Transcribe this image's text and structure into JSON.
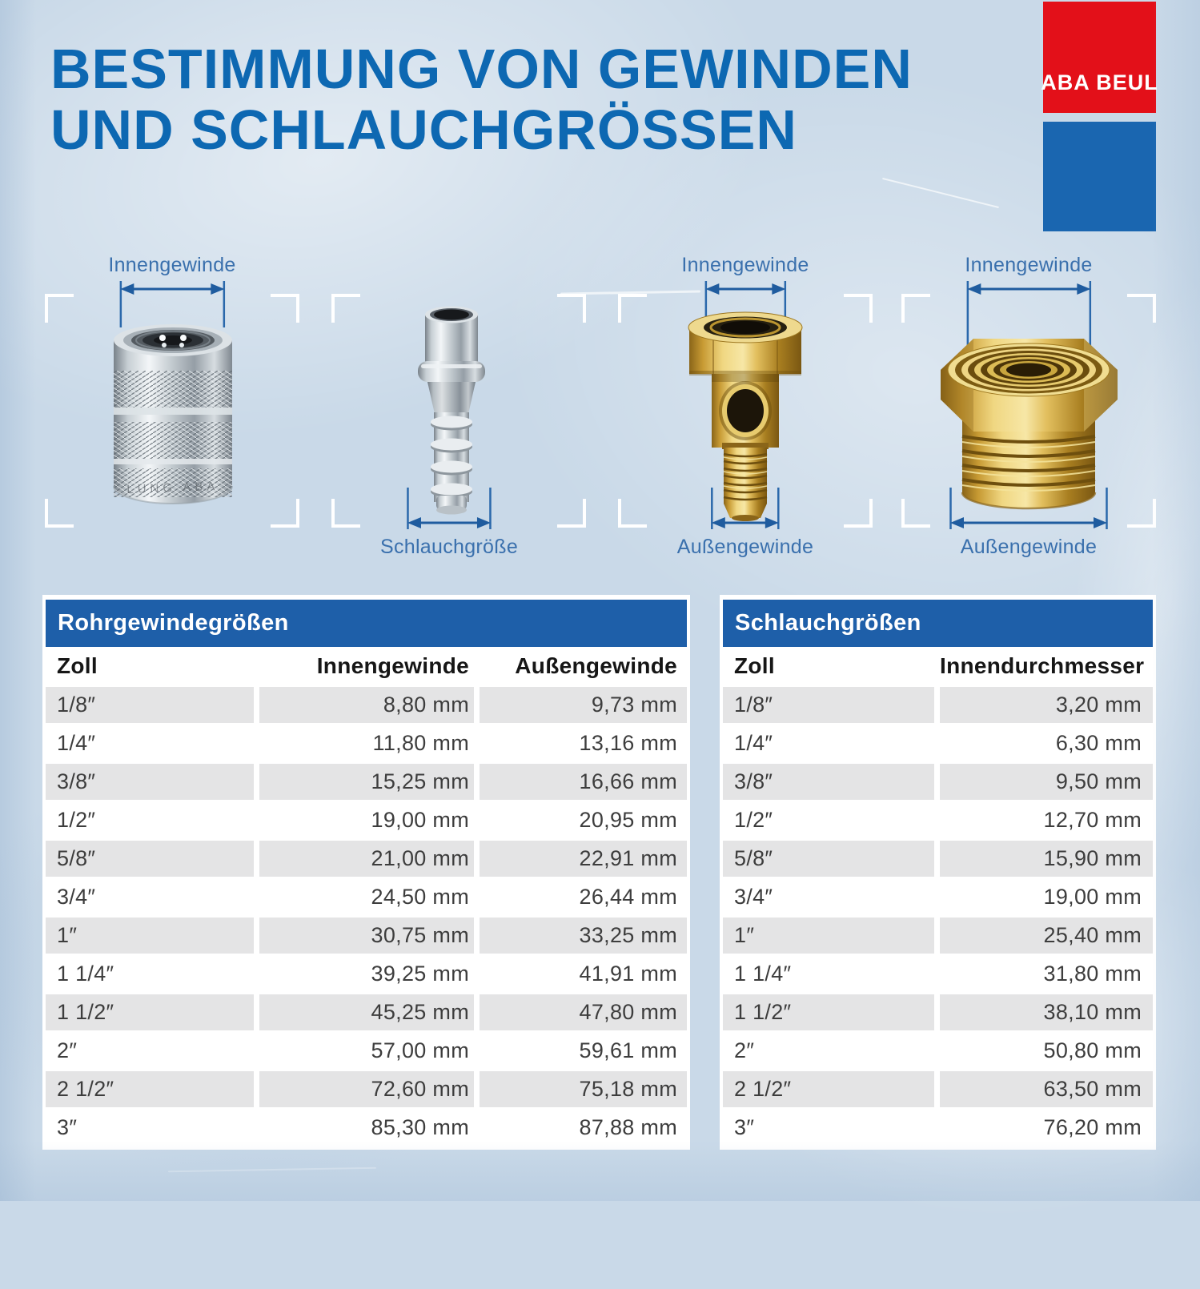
{
  "title": {
    "line1": "BESTIMMUNG VON GEWINDEN",
    "line2": "UND SCHLAUCHGRÖSSEN"
  },
  "logo": {
    "brand": "ABA BEUL"
  },
  "products": [
    {
      "name": "quick-coupling",
      "top_label": "Innengewinde",
      "engraving": "LUNG ABA"
    },
    {
      "name": "plug-nipple",
      "bottom_label": "Schlauchgröße"
    },
    {
      "name": "tee-fitting",
      "top_label": "Innengewinde",
      "bottom_label": "Außengewinde"
    },
    {
      "name": "reducing-bush",
      "top_label": "Innengewinde",
      "bottom_label": "Außengewinde"
    }
  ],
  "tables": {
    "left": {
      "header": "Rohrgewindegrößen",
      "columns": [
        "Zoll",
        "Innengewinde",
        "Außengewinde"
      ],
      "rows": [
        [
          "1/8″",
          "8,80 mm",
          "9,73 mm"
        ],
        [
          "1/4″",
          "11,80 mm",
          "13,16 mm"
        ],
        [
          "3/8″",
          "15,25 mm",
          "16,66 mm"
        ],
        [
          "1/2″",
          "19,00 mm",
          "20,95 mm"
        ],
        [
          "5/8″",
          "21,00 mm",
          "22,91 mm"
        ],
        [
          "3/4″",
          "24,50 mm",
          "26,44 mm"
        ],
        [
          "1″",
          "30,75 mm",
          "33,25 mm"
        ],
        [
          "1 1/4″",
          "39,25 mm",
          "41,91 mm"
        ],
        [
          "1 1/2″",
          "45,25 mm",
          "47,80 mm"
        ],
        [
          "2″",
          "57,00 mm",
          "59,61 mm"
        ],
        [
          "2 1/2″",
          "72,60 mm",
          "75,18 mm"
        ],
        [
          "3″",
          "85,30 mm",
          "87,88 mm"
        ]
      ]
    },
    "right": {
      "header": "Schlauchgrößen",
      "columns": [
        "Zoll",
        "Innendurchmesser"
      ],
      "rows": [
        [
          "1/8″",
          "3,20 mm"
        ],
        [
          "1/4″",
          "6,30 mm"
        ],
        [
          "3/8″",
          "9,50 mm"
        ],
        [
          "1/2″",
          "12,70 mm"
        ],
        [
          "5/8″",
          "15,90 mm"
        ],
        [
          "3/4″",
          "19,00 mm"
        ],
        [
          "1″",
          "25,40 mm"
        ],
        [
          "1 1/4″",
          "31,80 mm"
        ],
        [
          "1 1/2″",
          "38,10 mm"
        ],
        [
          "2″",
          "50,80 mm"
        ],
        [
          "2 1/2″",
          "63,50 mm"
        ],
        [
          "3″",
          "76,20 mm"
        ]
      ]
    }
  },
  "colors": {
    "title_blue": "#0d68b2",
    "table_header_blue": "#1e5fa9",
    "logo_red": "#e31019",
    "logo_blue": "#1a66b0",
    "annotation_blue": "#3a70ad",
    "arrow_blue": "#1f5c9f",
    "row_gray": "#e4e4e5",
    "background": "#c9d9e8",
    "value_text": "#3d3d3d"
  }
}
